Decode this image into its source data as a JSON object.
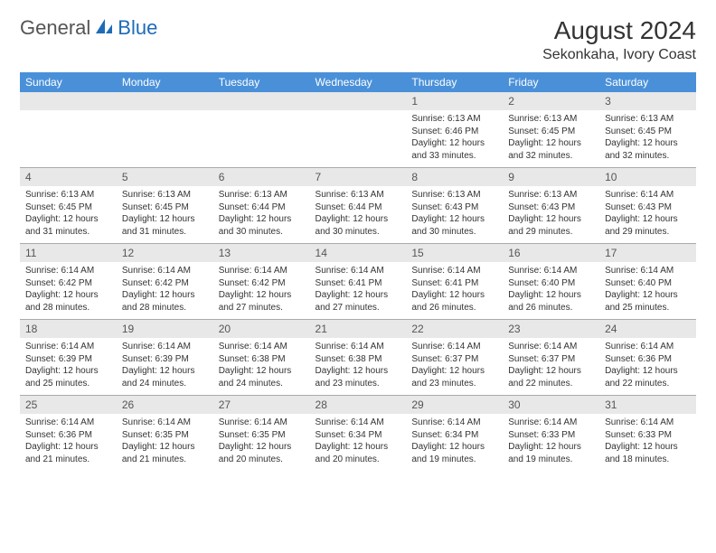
{
  "logo": {
    "text1": "General",
    "text2": "Blue"
  },
  "title": "August 2024",
  "location": "Sekonkaha, Ivory Coast",
  "colors": {
    "header_blue": "#4a90d9",
    "accent_blue": "#1e6bb8",
    "row_gray": "#e8e8e8",
    "divider_gray": "#aaaaaa"
  },
  "day_headers": [
    "Sunday",
    "Monday",
    "Tuesday",
    "Wednesday",
    "Thursday",
    "Friday",
    "Saturday"
  ],
  "weeks": [
    [
      null,
      null,
      null,
      null,
      {
        "n": "1",
        "sunrise": "6:13 AM",
        "sunset": "6:46 PM",
        "daylight": "12 hours and 33 minutes."
      },
      {
        "n": "2",
        "sunrise": "6:13 AM",
        "sunset": "6:45 PM",
        "daylight": "12 hours and 32 minutes."
      },
      {
        "n": "3",
        "sunrise": "6:13 AM",
        "sunset": "6:45 PM",
        "daylight": "12 hours and 32 minutes."
      }
    ],
    [
      {
        "n": "4",
        "sunrise": "6:13 AM",
        "sunset": "6:45 PM",
        "daylight": "12 hours and 31 minutes."
      },
      {
        "n": "5",
        "sunrise": "6:13 AM",
        "sunset": "6:45 PM",
        "daylight": "12 hours and 31 minutes."
      },
      {
        "n": "6",
        "sunrise": "6:13 AM",
        "sunset": "6:44 PM",
        "daylight": "12 hours and 30 minutes."
      },
      {
        "n": "7",
        "sunrise": "6:13 AM",
        "sunset": "6:44 PM",
        "daylight": "12 hours and 30 minutes."
      },
      {
        "n": "8",
        "sunrise": "6:13 AM",
        "sunset": "6:43 PM",
        "daylight": "12 hours and 30 minutes."
      },
      {
        "n": "9",
        "sunrise": "6:13 AM",
        "sunset": "6:43 PM",
        "daylight": "12 hours and 29 minutes."
      },
      {
        "n": "10",
        "sunrise": "6:14 AM",
        "sunset": "6:43 PM",
        "daylight": "12 hours and 29 minutes."
      }
    ],
    [
      {
        "n": "11",
        "sunrise": "6:14 AM",
        "sunset": "6:42 PM",
        "daylight": "12 hours and 28 minutes."
      },
      {
        "n": "12",
        "sunrise": "6:14 AM",
        "sunset": "6:42 PM",
        "daylight": "12 hours and 28 minutes."
      },
      {
        "n": "13",
        "sunrise": "6:14 AM",
        "sunset": "6:42 PM",
        "daylight": "12 hours and 27 minutes."
      },
      {
        "n": "14",
        "sunrise": "6:14 AM",
        "sunset": "6:41 PM",
        "daylight": "12 hours and 27 minutes."
      },
      {
        "n": "15",
        "sunrise": "6:14 AM",
        "sunset": "6:41 PM",
        "daylight": "12 hours and 26 minutes."
      },
      {
        "n": "16",
        "sunrise": "6:14 AM",
        "sunset": "6:40 PM",
        "daylight": "12 hours and 26 minutes."
      },
      {
        "n": "17",
        "sunrise": "6:14 AM",
        "sunset": "6:40 PM",
        "daylight": "12 hours and 25 minutes."
      }
    ],
    [
      {
        "n": "18",
        "sunrise": "6:14 AM",
        "sunset": "6:39 PM",
        "daylight": "12 hours and 25 minutes."
      },
      {
        "n": "19",
        "sunrise": "6:14 AM",
        "sunset": "6:39 PM",
        "daylight": "12 hours and 24 minutes."
      },
      {
        "n": "20",
        "sunrise": "6:14 AM",
        "sunset": "6:38 PM",
        "daylight": "12 hours and 24 minutes."
      },
      {
        "n": "21",
        "sunrise": "6:14 AM",
        "sunset": "6:38 PM",
        "daylight": "12 hours and 23 minutes."
      },
      {
        "n": "22",
        "sunrise": "6:14 AM",
        "sunset": "6:37 PM",
        "daylight": "12 hours and 23 minutes."
      },
      {
        "n": "23",
        "sunrise": "6:14 AM",
        "sunset": "6:37 PM",
        "daylight": "12 hours and 22 minutes."
      },
      {
        "n": "24",
        "sunrise": "6:14 AM",
        "sunset": "6:36 PM",
        "daylight": "12 hours and 22 minutes."
      }
    ],
    [
      {
        "n": "25",
        "sunrise": "6:14 AM",
        "sunset": "6:36 PM",
        "daylight": "12 hours and 21 minutes."
      },
      {
        "n": "26",
        "sunrise": "6:14 AM",
        "sunset": "6:35 PM",
        "daylight": "12 hours and 21 minutes."
      },
      {
        "n": "27",
        "sunrise": "6:14 AM",
        "sunset": "6:35 PM",
        "daylight": "12 hours and 20 minutes."
      },
      {
        "n": "28",
        "sunrise": "6:14 AM",
        "sunset": "6:34 PM",
        "daylight": "12 hours and 20 minutes."
      },
      {
        "n": "29",
        "sunrise": "6:14 AM",
        "sunset": "6:34 PM",
        "daylight": "12 hours and 19 minutes."
      },
      {
        "n": "30",
        "sunrise": "6:14 AM",
        "sunset": "6:33 PM",
        "daylight": "12 hours and 19 minutes."
      },
      {
        "n": "31",
        "sunrise": "6:14 AM",
        "sunset": "6:33 PM",
        "daylight": "12 hours and 18 minutes."
      }
    ]
  ],
  "labels": {
    "sunrise": "Sunrise:",
    "sunset": "Sunset:",
    "daylight": "Daylight:"
  }
}
